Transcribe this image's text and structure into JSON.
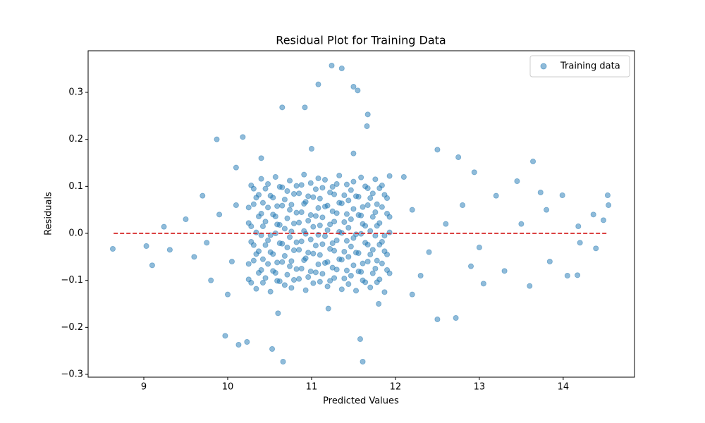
{
  "chart_data": {
    "type": "scatter",
    "title": "Residual Plot for Training Data",
    "x_label": "Predicted Values",
    "y_label": "Residuals",
    "xlim": [
      8.336,
      14.85
    ],
    "ylim": [
      -0.306,
      0.3885
    ],
    "xticks": [
      9,
      10,
      11,
      12,
      13,
      14
    ],
    "yticks": [
      {
        "value": -0.3,
        "label": "−0.3"
      },
      {
        "value": -0.2,
        "label": "−0.2"
      },
      {
        "value": -0.1,
        "label": "−0.1"
      },
      {
        "value": 0,
        "label": "0.0"
      },
      0.1,
      0.2,
      0.3
    ],
    "legend": "upper right",
    "reference_line": {
      "y": 0,
      "x": [
        8.64,
        14.53
      ],
      "color": "#d62728"
    },
    "series": [
      {
        "name": "Training data",
        "color": "#1f77b4",
        "x": [
          10.25,
          10.34,
          10.42,
          10.51,
          10.59,
          10.68,
          10.76,
          10.85,
          10.93,
          11.02,
          11.1,
          11.19,
          11.27,
          11.36,
          11.44,
          11.53,
          11.61,
          11.7,
          11.78,
          11.87,
          10.28,
          10.37,
          10.45,
          10.54,
          10.62,
          10.71,
          10.79,
          10.88,
          10.96,
          11.05,
          11.13,
          11.22,
          11.3,
          11.39,
          11.47,
          11.56,
          11.64,
          11.73,
          11.81,
          11.9,
          10.31,
          10.4,
          10.48,
          10.57,
          10.65,
          10.74,
          10.82,
          10.91,
          10.99,
          11.08,
          11.16,
          11.25,
          11.33,
          11.42,
          11.5,
          11.59,
          11.67,
          11.76,
          11.84,
          11.93,
          10.25,
          10.34,
          10.42,
          10.51,
          10.59,
          10.68,
          10.76,
          10.85,
          10.93,
          11.02,
          11.1,
          11.19,
          11.27,
          11.36,
          11.44,
          11.53,
          11.61,
          11.7,
          11.78,
          11.87,
          10.28,
          10.37,
          10.45,
          10.54,
          10.62,
          10.71,
          10.79,
          10.88,
          10.96,
          11.05,
          11.13,
          11.22,
          11.3,
          11.39,
          11.47,
          11.56,
          11.64,
          11.73,
          11.81,
          11.9,
          10.31,
          10.4,
          10.48,
          10.57,
          10.65,
          10.74,
          10.82,
          10.91,
          10.99,
          11.08,
          11.16,
          11.25,
          11.33,
          11.42,
          11.5,
          11.59,
          11.67,
          11.76,
          11.84,
          11.93,
          10.25,
          10.34,
          10.42,
          10.51,
          10.59,
          10.68,
          10.76,
          10.85,
          10.93,
          11.02,
          11.1,
          11.19,
          11.27,
          11.36,
          11.44,
          11.53,
          11.61,
          11.7,
          11.78,
          11.87,
          10.28,
          10.37,
          10.45,
          10.54,
          10.62,
          10.71,
          10.79,
          10.88,
          10.96,
          11.05,
          11.13,
          11.22,
          11.3,
          11.39,
          11.47,
          11.56,
          11.64,
          11.73,
          11.81,
          11.9,
          10.31,
          10.4,
          10.48,
          10.57,
          10.65,
          10.74,
          10.82,
          10.91,
          10.99,
          11.08,
          11.16,
          11.25,
          11.33,
          11.42,
          11.5,
          11.59,
          11.67,
          11.76,
          11.84,
          11.93,
          10.25,
          10.34,
          10.42,
          10.51,
          10.59,
          10.68,
          10.76,
          10.85,
          10.93,
          11.02,
          11.1,
          11.19,
          11.27,
          11.36,
          11.44,
          11.53,
          11.61,
          11.7,
          11.78,
          11.87,
          10.28,
          10.37,
          10.45,
          10.54,
          10.62,
          10.71,
          10.79,
          10.88,
          10.96,
          11.05,
          11.13,
          11.22,
          11.3,
          11.39,
          11.47,
          11.56,
          11.64,
          11.73,
          11.81,
          11.9,
          10.31,
          10.4,
          10.48,
          10.57,
          10.65,
          10.74,
          10.82,
          10.91,
          10.99,
          11.08,
          11.16,
          11.25,
          11.33,
          11.42,
          11.5,
          11.59,
          11.67,
          11.76,
          11.84,
          11.93,
          12.2,
          12.4,
          12.6,
          12.3,
          12.8,
          13.0,
          13.2,
          13.3,
          13.5,
          12.9,
          13.8,
          14.2,
          9.6,
          9.7,
          9.8,
          9.9,
          10.0,
          10.1,
          9.5,
          9.75,
          10.1,
          10.05,
          12.1,
          12.2,
          10.4,
          10.6,
          11.0,
          11.2,
          11.5,
          11.8,
          8.63,
          9.03,
          9.1,
          9.24,
          9.31,
          9.87,
          10.18,
          10.13,
          10.23,
          9.97,
          10.66,
          10.53,
          11.24,
          11.36,
          11.08,
          11.5,
          11.55,
          10.65,
          11.61,
          11.58,
          12.5,
          12.72,
          13.64,
          14.53,
          14.54,
          14.05,
          14.17,
          12.75,
          12.5,
          12.94,
          13.05,
          13.6,
          13.84,
          14.36,
          14.39,
          14.18,
          14.48,
          13.99,
          13.73,
          13.45,
          10.92,
          11.67,
          11.66
        ],
        "values": [
          -0.098,
          -0.118,
          -0.105,
          -0.124,
          -0.101,
          -0.11,
          -0.116,
          -0.097,
          -0.121,
          -0.106,
          -0.103,
          -0.113,
          -0.095,
          -0.119,
          -0.108,
          -0.122,
          -0.1,
          -0.115,
          -0.104,
          -0.125,
          -0.105,
          -0.084,
          -0.095,
          -0.08,
          -0.102,
          -0.088,
          -0.099,
          -0.075,
          -0.093,
          -0.083,
          -0.086,
          -0.101,
          -0.077,
          -0.096,
          -0.09,
          -0.081,
          -0.104,
          -0.085,
          -0.098,
          -0.078,
          -0.058,
          -0.078,
          -0.065,
          -0.084,
          -0.061,
          -0.07,
          -0.076,
          -0.057,
          -0.081,
          -0.066,
          -0.063,
          -0.073,
          -0.055,
          -0.079,
          -0.068,
          -0.082,
          -0.06,
          -0.075,
          -0.064,
          -0.085,
          -0.065,
          -0.044,
          -0.055,
          -0.04,
          -0.062,
          -0.048,
          -0.059,
          -0.035,
          -0.053,
          -0.043,
          -0.046,
          -0.061,
          -0.037,
          -0.056,
          -0.05,
          -0.041,
          -0.064,
          -0.045,
          -0.058,
          -0.038,
          -0.018,
          -0.038,
          -0.025,
          -0.044,
          -0.021,
          -0.03,
          -0.036,
          -0.017,
          -0.041,
          -0.026,
          -0.023,
          -0.033,
          -0.015,
          -0.039,
          -0.028,
          -0.042,
          -0.02,
          -0.035,
          -0.024,
          -0.045,
          -0.025,
          -0.004,
          -0.015,
          0.0,
          -0.022,
          -0.008,
          -0.019,
          0.005,
          -0.013,
          -0.003,
          -0.006,
          -0.021,
          0.003,
          -0.016,
          -0.01,
          -0.001,
          -0.024,
          -0.005,
          -0.018,
          0.002,
          0.022,
          0.002,
          0.015,
          -0.004,
          0.019,
          0.01,
          0.004,
          0.023,
          -0.001,
          0.014,
          0.017,
          0.007,
          0.025,
          0.001,
          0.012,
          -0.002,
          0.02,
          0.005,
          0.016,
          -0.005,
          0.015,
          0.036,
          0.025,
          0.04,
          0.018,
          0.032,
          0.021,
          0.045,
          0.027,
          0.037,
          0.034,
          0.019,
          0.043,
          0.024,
          0.03,
          0.039,
          0.016,
          0.035,
          0.022,
          0.042,
          0.062,
          0.042,
          0.055,
          0.036,
          0.059,
          0.05,
          0.044,
          0.063,
          0.039,
          0.054,
          0.057,
          0.047,
          0.065,
          0.041,
          0.052,
          0.038,
          0.06,
          0.045,
          0.056,
          0.035,
          0.055,
          0.076,
          0.065,
          0.08,
          0.058,
          0.072,
          0.061,
          0.085,
          0.067,
          0.077,
          0.074,
          0.059,
          0.083,
          0.064,
          0.07,
          0.079,
          0.056,
          0.075,
          0.062,
          0.082,
          0.102,
          0.082,
          0.095,
          0.076,
          0.099,
          0.09,
          0.084,
          0.103,
          0.079,
          0.094,
          0.097,
          0.087,
          0.105,
          0.081,
          0.092,
          0.078,
          0.1,
          0.085,
          0.096,
          0.075,
          0.095,
          0.116,
          0.105,
          0.12,
          0.098,
          0.112,
          0.101,
          0.125,
          0.107,
          0.117,
          0.114,
          0.099,
          0.123,
          0.104,
          0.11,
          0.119,
          0.096,
          0.115,
          0.102,
          0.122,
          0.05,
          -0.04,
          0.02,
          -0.09,
          0.06,
          -0.03,
          0.08,
          -0.08,
          0.02,
          -0.07,
          0.05,
          -0.02,
          -0.05,
          0.08,
          -0.1,
          0.04,
          -0.13,
          0.14,
          0.03,
          -0.02,
          0.06,
          -0.06,
          0.12,
          -0.13,
          0.16,
          -0.17,
          0.18,
          -0.16,
          0.17,
          -0.15,
          -0.033,
          -0.027,
          -0.068,
          0.014,
          -0.035,
          0.2,
          0.205,
          -0.237,
          -0.231,
          -0.218,
          -0.273,
          -0.246,
          0.357,
          0.351,
          0.317,
          0.312,
          0.304,
          0.268,
          -0.273,
          -0.225,
          -0.183,
          -0.18,
          0.153,
          0.081,
          0.06,
          -0.09,
          -0.089,
          0.162,
          0.178,
          0.13,
          -0.107,
          -0.112,
          -0.06,
          0.04,
          -0.032,
          0.015,
          0.028,
          0.081,
          0.087,
          0.111,
          0.268,
          0.253,
          0.228
        ]
      }
    ]
  }
}
